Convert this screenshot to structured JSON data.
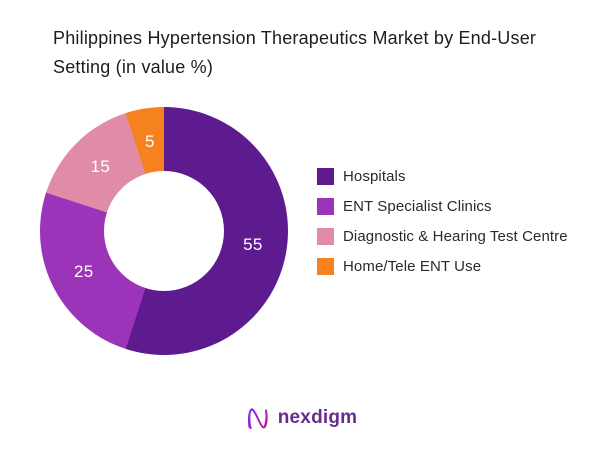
{
  "title": "Philippines Hypertension Therapeutics Market by End-User Setting (in value %)",
  "chart_data": {
    "type": "pie",
    "subtype": "donut",
    "title": "Philippines Hypertension Therapeutics Market by End-User Setting (in value %)",
    "categories": [
      "Hospitals",
      "ENT Specialist Clinics",
      "Diagnostic & Hearing Test Centre",
      "Home/Tele ENT Use"
    ],
    "values": [
      55,
      25,
      15,
      5
    ],
    "unit": "value %",
    "colors": [
      "#5e1b90",
      "#9c34b9",
      "#e08ca7",
      "#f5821f"
    ],
    "start_angle_deg": 0,
    "direction": "clockwise",
    "inner_radius_ratio": 0.48,
    "slice_label_color": "#ffffff",
    "legend_position": "right",
    "grid": false
  },
  "logo": {
    "text": "nexdigm",
    "icon": "nexdigm-n-icon",
    "text_color": "#662d91",
    "gradient_start": "#7b2ff7",
    "gradient_end": "#c71585"
  }
}
